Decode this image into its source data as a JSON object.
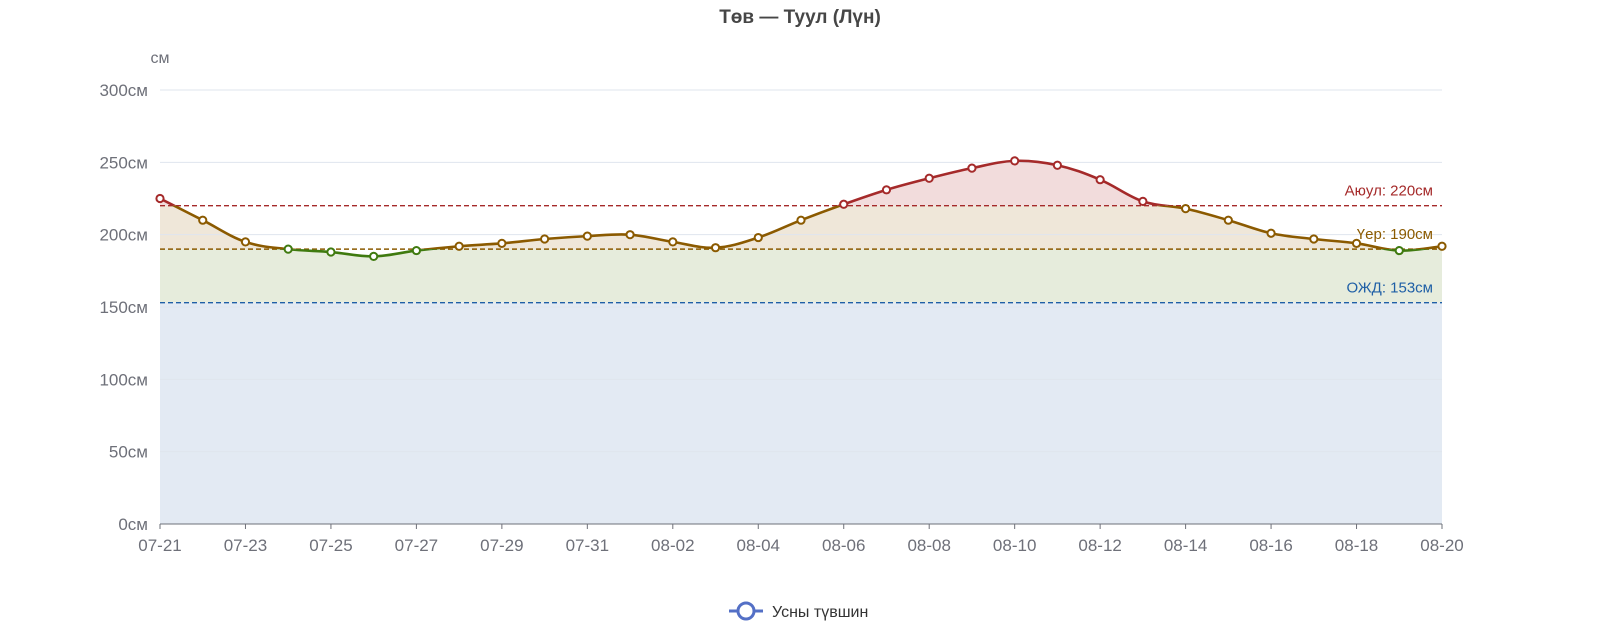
{
  "chart_data": {
    "type": "line",
    "title": "Төв — Туул (Лүн)",
    "ylabel": "см",
    "y_unit_suffix": "см",
    "ylim": [
      0,
      300
    ],
    "yticks": [
      0,
      50,
      100,
      150,
      200,
      250,
      300
    ],
    "grid": true,
    "legend_position": "bottom-center",
    "x": [
      "07-21",
      "07-22",
      "07-23",
      "07-24",
      "07-25",
      "07-26",
      "07-27",
      "07-28",
      "07-29",
      "07-30",
      "07-31",
      "08-01",
      "08-02",
      "08-03",
      "08-04",
      "08-05",
      "08-06",
      "08-07",
      "08-08",
      "08-09",
      "08-10",
      "08-11",
      "08-12",
      "08-13",
      "08-14",
      "08-15",
      "08-16",
      "08-17",
      "08-18",
      "08-19",
      "08-20"
    ],
    "xtick_labels": [
      "07-21",
      "07-23",
      "07-25",
      "07-27",
      "07-29",
      "07-31",
      "08-02",
      "08-04",
      "08-06",
      "08-08",
      "08-10",
      "08-12",
      "08-14",
      "08-16",
      "08-18",
      "08-20"
    ],
    "series": [
      {
        "name": "Усны түвшин",
        "values": [
          225,
          210,
          195,
          190,
          188,
          185,
          189,
          192,
          194,
          197,
          199,
          200,
          195,
          191,
          198,
          210,
          221,
          231,
          239,
          246,
          251,
          248,
          238,
          223,
          218,
          210,
          201,
          197,
          194,
          189,
          192
        ]
      }
    ],
    "thresholds": [
      {
        "label": "Аюул: 220см",
        "value": 220,
        "color": "#a52a2a"
      },
      {
        "label": "Үер: 190см",
        "value": 190,
        "color": "#8b5a00"
      },
      {
        "label": "ОЖД: 153см",
        "value": 153,
        "color": "#1f5fa6"
      }
    ],
    "colors": {
      "danger_line": "#a52a2a",
      "flood_line": "#8b5a00",
      "normal_line": "#3f7a0f",
      "danger_fill": "#f2dcdc",
      "flood_fill": "#efe7d9",
      "normal_fill": "#e6ecdc",
      "low_fill": "#e3eaf3",
      "legend_icon": "#5470c6",
      "grid": "#dfe5ee",
      "axis": "#6e7079"
    }
  }
}
